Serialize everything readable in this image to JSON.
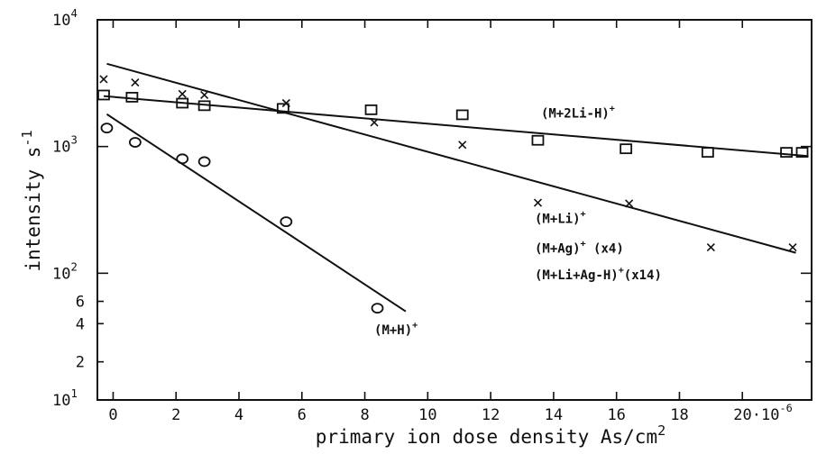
{
  "chart_data": {
    "type": "scatter",
    "xlabel": "primary ion dose density   As/cm",
    "xlabel_sup": "2",
    "ylabel": "intensity   s",
    "ylabel_sup": "-1",
    "xlim": [
      -0.5,
      22.2
    ],
    "ylim_log10": [
      1,
      4
    ],
    "y_scale": "log",
    "x_ticks": [
      {
        "value": 0,
        "label": "0"
      },
      {
        "value": 2,
        "label": "2"
      },
      {
        "value": 4,
        "label": "4"
      },
      {
        "value": 6,
        "label": "6"
      },
      {
        "value": 8,
        "label": "8"
      },
      {
        "value": 10,
        "label": "10"
      },
      {
        "value": 12,
        "label": "12"
      },
      {
        "value": 14,
        "label": "14"
      },
      {
        "value": 16,
        "label": "16"
      },
      {
        "value": 18,
        "label": "18"
      },
      {
        "value": 20,
        "label": "20"
      }
    ],
    "x_tick_suffix": "·10",
    "x_tick_suffix_sup": "-6",
    "y_major_ticks": [
      {
        "value": 10,
        "base": "10",
        "exp": "1"
      },
      {
        "value": 100,
        "base": "10",
        "exp": "2"
      },
      {
        "value": 1000,
        "base": "10",
        "exp": "3"
      },
      {
        "value": 10000,
        "base": "10",
        "exp": "4"
      }
    ],
    "y_minor_ticks": [
      {
        "value": 20,
        "label": "2"
      },
      {
        "value": 40,
        "label": "4"
      },
      {
        "value": 60,
        "label": "6"
      }
    ],
    "series": [
      {
        "marker": "circle",
        "points": [
          [
            -0.2,
            1400
          ],
          [
            0.7,
            1080
          ],
          [
            2.2,
            800
          ],
          [
            2.9,
            760
          ],
          [
            5.5,
            255
          ],
          [
            8.4,
            53
          ]
        ],
        "fit_line": [
          [
            -0.2,
            1800
          ],
          [
            9.3,
            50
          ]
        ]
      },
      {
        "marker": "square",
        "points": [
          [
            -0.3,
            2550
          ],
          [
            0.6,
            2450
          ],
          [
            2.2,
            2200
          ],
          [
            2.9,
            2100
          ],
          [
            5.4,
            2000
          ],
          [
            8.2,
            1950
          ],
          [
            11.1,
            1780
          ],
          [
            13.5,
            1120
          ],
          [
            16.3,
            960
          ],
          [
            18.9,
            900
          ],
          [
            21.4,
            900
          ],
          [
            21.9,
            900
          ]
        ],
        "fit_line": [
          [
            -0.3,
            2500
          ],
          [
            22.1,
            840
          ]
        ]
      },
      {
        "marker": "x",
        "points": [
          [
            -0.3,
            3400
          ],
          [
            0.7,
            3200
          ],
          [
            2.2,
            2600
          ],
          [
            2.9,
            2550
          ],
          [
            5.5,
            2200
          ],
          [
            8.3,
            1550
          ],
          [
            11.1,
            1030
          ],
          [
            13.5,
            360
          ],
          [
            16.4,
            355
          ],
          [
            19.0,
            160
          ],
          [
            21.6,
            160
          ]
        ],
        "fit_line": [
          [
            -0.2,
            4500
          ],
          [
            21.7,
            145
          ]
        ]
      }
    ],
    "annotations": [
      {
        "text": "(M+2Li-H)",
        "sup": "+",
        "x": 13.6,
        "y": 1700
      },
      {
        "text": "(M+Li)",
        "sup": "+",
        "x": 13.4,
        "y": 250
      },
      {
        "text": "(M+Ag)",
        "sup": "+",
        "suffix": " (x4)",
        "x": 13.4,
        "y": 145
      },
      {
        "text": "(M+Li+Ag-H)",
        "sup": "+",
        "suffix": "(x14)",
        "x": 13.4,
        "y": 90
      },
      {
        "text": "(M+H)",
        "sup": "+",
        "x": 8.3,
        "y": 33
      }
    ]
  }
}
